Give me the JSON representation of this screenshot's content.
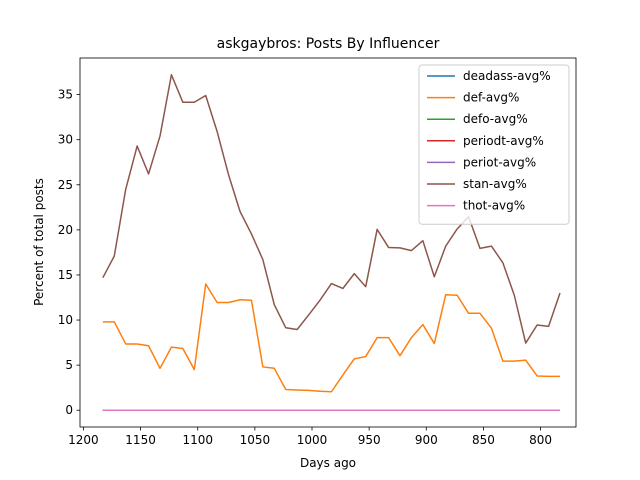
{
  "chart_data": {
    "type": "line",
    "title": "askgaybros: Posts By Influencer",
    "xlabel": "Days ago",
    "ylabel": "Percent of total posts",
    "xlim": [
      1203,
      769
    ],
    "ylim": [
      -1.86,
      39.06
    ],
    "x_inverted": true,
    "xticks": [
      1200,
      1150,
      1100,
      1050,
      1000,
      950,
      900,
      850,
      800
    ],
    "yticks": [
      0,
      5,
      10,
      15,
      20,
      25,
      30,
      35
    ],
    "grid": false,
    "legend_position": "top-right",
    "x": [
      1183,
      1173,
      1163,
      1153,
      1143,
      1133,
      1123,
      1113,
      1103,
      1093,
      1083,
      1073,
      1063,
      1053,
      1043,
      1033,
      1023,
      1013,
      1003,
      993,
      983,
      973,
      963,
      953,
      943,
      933,
      923,
      913,
      903,
      893,
      883,
      873,
      863,
      853,
      843,
      833,
      823,
      813,
      803,
      793,
      783
    ],
    "series": [
      {
        "name": "deadass-avg%",
        "color": "#1f77b4",
        "values": [
          0,
          0,
          0,
          0,
          0,
          0,
          0,
          0,
          0,
          0,
          0,
          0,
          0,
          0,
          0,
          0,
          0,
          0,
          0,
          0,
          0,
          0,
          0,
          0,
          0,
          0,
          0,
          0,
          0,
          0,
          0,
          0,
          0,
          0,
          0,
          0,
          0,
          0,
          0,
          0,
          0
        ]
      },
      {
        "name": "def-avg%",
        "color": "#ff7f0e",
        "values": [
          9.8,
          9.8,
          7.35,
          7.35,
          7.15,
          4.65,
          7.0,
          6.85,
          4.5,
          14.0,
          11.95,
          11.95,
          12.25,
          12.2,
          4.8,
          4.65,
          2.3,
          2.25,
          2.2,
          2.1,
          2.05,
          3.9,
          5.7,
          5.95,
          8.05,
          8.05,
          6.05,
          8.05,
          9.5,
          7.4,
          12.8,
          12.75,
          10.75,
          10.75,
          9.1,
          5.45,
          5.45,
          5.55,
          3.8,
          3.75,
          3.75
        ]
      },
      {
        "name": "defo-avg%",
        "color": "#2ca02c",
        "values": [
          0,
          0,
          0,
          0,
          0,
          0,
          0,
          0,
          0,
          0,
          0,
          0,
          0,
          0,
          0,
          0,
          0,
          0,
          0,
          0,
          0,
          0,
          0,
          0,
          0,
          0,
          0,
          0,
          0,
          0,
          0,
          0,
          0,
          0,
          0,
          0,
          0,
          0,
          0,
          0,
          0
        ]
      },
      {
        "name": "periodt-avg%",
        "color": "#d62728",
        "values": [
          0,
          0,
          0,
          0,
          0,
          0,
          0,
          0,
          0,
          0,
          0,
          0,
          0,
          0,
          0,
          0,
          0,
          0,
          0,
          0,
          0,
          0,
          0,
          0,
          0,
          0,
          0,
          0,
          0,
          0,
          0,
          0,
          0,
          0,
          0,
          0,
          0,
          0,
          0,
          0,
          0
        ]
      },
      {
        "name": "periot-avg%",
        "color": "#9467bd",
        "values": [
          0,
          0,
          0,
          0,
          0,
          0,
          0,
          0,
          0,
          0,
          0,
          0,
          0,
          0,
          0,
          0,
          0,
          0,
          0,
          0,
          0,
          0,
          0,
          0,
          0,
          0,
          0,
          0,
          0,
          0,
          0,
          0,
          0,
          0,
          0,
          0,
          0,
          0,
          0,
          0,
          0
        ]
      },
      {
        "name": "stan-avg%",
        "color": "#8c564b",
        "values": [
          14.7,
          17.1,
          24.5,
          29.3,
          26.2,
          30.4,
          37.2,
          34.15,
          34.15,
          34.9,
          30.9,
          26.1,
          22.05,
          19.55,
          16.7,
          11.7,
          9.15,
          8.95,
          10.55,
          12.2,
          14.05,
          13.5,
          15.15,
          13.7,
          20.05,
          18.05,
          18.0,
          17.7,
          18.8,
          14.8,
          18.2,
          20.1,
          21.45,
          17.95,
          18.2,
          16.35,
          12.75,
          7.45,
          9.45,
          9.3,
          13.0
        ]
      },
      {
        "name": "thot-avg%",
        "color": "#e377c2",
        "values": [
          0,
          0,
          0,
          0,
          0,
          0,
          0,
          0,
          0,
          0,
          0,
          0,
          0,
          0,
          0,
          0,
          0,
          0,
          0,
          0,
          0,
          0,
          0,
          0,
          0,
          0,
          0,
          0,
          0,
          0,
          0,
          0,
          0,
          0,
          0,
          0,
          0,
          0,
          0,
          0,
          0
        ]
      }
    ]
  }
}
